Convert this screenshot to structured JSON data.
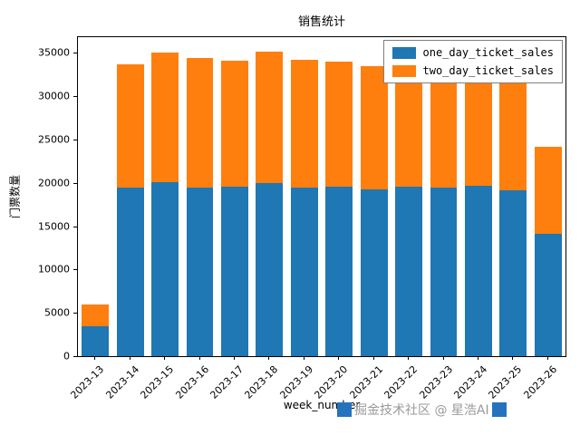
{
  "chart_data": {
    "type": "bar",
    "stacked": true,
    "title": "销售统计",
    "xlabel": "week_number",
    "ylabel": "门票数量",
    "categories": [
      "2023-13",
      "2023-14",
      "2023-15",
      "2023-16",
      "2023-17",
      "2023-18",
      "2023-19",
      "2023-20",
      "2023-21",
      "2023-22",
      "2023-23",
      "2023-24",
      "2023-25",
      "2023-26"
    ],
    "series": [
      {
        "name": "one_day_ticket_sales",
        "color": "#1f77b4",
        "values": [
          3400,
          19400,
          20100,
          19400,
          19500,
          20000,
          19400,
          19600,
          19200,
          19600,
          19400,
          19700,
          19100,
          14100
        ]
      },
      {
        "name": "two_day_ticket_sales",
        "color": "#ff7f0e",
        "values": [
          2600,
          14300,
          14900,
          15000,
          14600,
          15100,
          14800,
          14400,
          14300,
          15100,
          15000,
          14900,
          12500,
          10100
        ]
      }
    ],
    "stack_totals": [
      6000,
      33700,
      35000,
      34400,
      34100,
      35100,
      34200,
      34000,
      33500,
      34700,
      34400,
      34600,
      31600,
      24200
    ],
    "ylim": [
      0,
      36800
    ],
    "yticks": [
      0,
      5000,
      10000,
      15000,
      20000,
      25000,
      30000,
      35000
    ],
    "legend_position": "upper right",
    "grid": false
  },
  "watermark": {
    "text": "掘金技术社区 @ 星浩AI",
    "text_color": "#9a9a9a",
    "badge_color": "#2573be"
  }
}
